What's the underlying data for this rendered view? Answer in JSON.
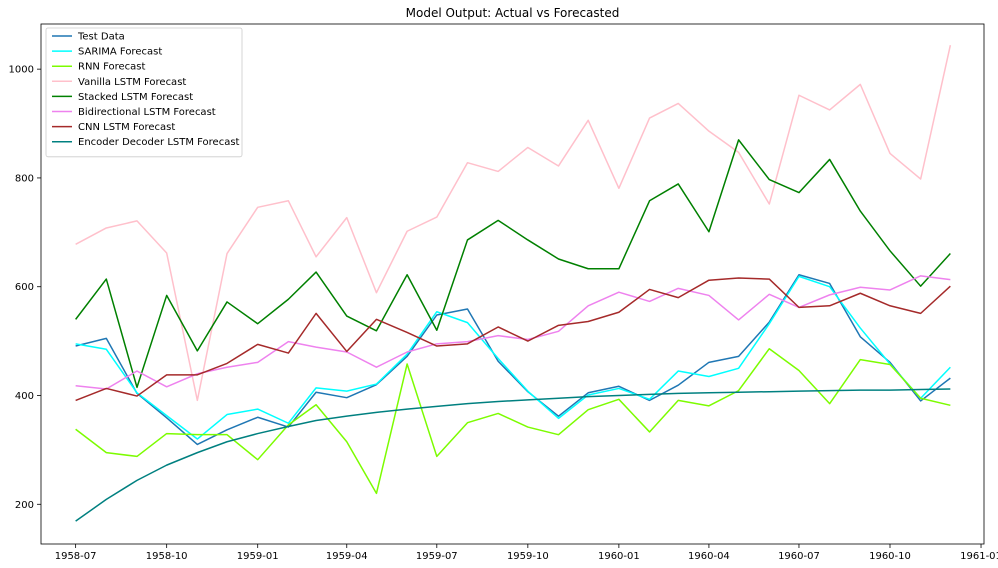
{
  "chart_data": {
    "type": "line",
    "title": "Model Output: Actual vs Forecasted",
    "xlabel": "",
    "ylabel": "",
    "x": [
      "1958-07",
      "1958-08",
      "1958-09",
      "1958-10",
      "1958-11",
      "1958-12",
      "1959-01",
      "1959-02",
      "1959-03",
      "1959-04",
      "1959-05",
      "1959-06",
      "1959-07",
      "1959-08",
      "1959-09",
      "1959-10",
      "1959-11",
      "1959-12",
      "1960-01",
      "1960-02",
      "1960-03",
      "1960-04",
      "1960-05",
      "1960-06",
      "1960-07",
      "1960-08",
      "1960-09",
      "1960-10",
      "1960-11",
      "1960-12"
    ],
    "x_ticks": [
      "1958-07",
      "1958-10",
      "1959-01",
      "1959-04",
      "1959-07",
      "1959-10",
      "1960-01",
      "1960-04",
      "1960-07",
      "1960-10",
      "1961-01"
    ],
    "y_ticks": [
      200,
      400,
      600,
      800,
      1000
    ],
    "xlim": [
      "1958-05-27",
      "1961-01-04"
    ],
    "ylim": [
      127,
      1083
    ],
    "grid": false,
    "legend_position": "upper left",
    "series": [
      {
        "name": "Test Data",
        "color": "#1f77b4",
        "values": [
          491,
          505,
          404,
          359,
          310,
          337,
          360,
          342,
          406,
          396,
          420,
          472,
          548,
          559,
          463,
          407,
          362,
          405,
          417,
          391,
          419,
          461,
          472,
          535,
          622,
          606,
          508,
          461,
          390,
          432
        ]
      },
      {
        "name": "SARIMA Forecast",
        "color": "#00ffff",
        "values": [
          495,
          485,
          405,
          363,
          320,
          365,
          375,
          349,
          414,
          408,
          421,
          476,
          554,
          534,
          468,
          408,
          358,
          401,
          413,
          393,
          445,
          435,
          450,
          532,
          619,
          600,
          524,
          458,
          395,
          452
        ]
      },
      {
        "name": "RNN Forecast",
        "color": "#7cfc00",
        "values": [
          338,
          295,
          288,
          330,
          328,
          328,
          282,
          346,
          383,
          315,
          220,
          458,
          288,
          350,
          367,
          342,
          328,
          374,
          393,
          333,
          391,
          381,
          409,
          486,
          446,
          385,
          466,
          457,
          395,
          382
        ]
      },
      {
        "name": "Vanilla LSTM Forecast",
        "color": "#ffc0cb",
        "values": [
          678,
          708,
          721,
          662,
          391,
          661,
          746,
          758,
          655,
          727,
          589,
          702,
          728,
          828,
          812,
          856,
          822,
          906,
          781,
          910,
          937,
          886,
          847,
          752,
          952,
          925,
          972,
          845,
          798,
          1044
        ]
      },
      {
        "name": "Stacked LSTM Forecast",
        "color": "#008000",
        "values": [
          540,
          614,
          415,
          584,
          482,
          572,
          532,
          577,
          627,
          546,
          519,
          622,
          520,
          686,
          722,
          686,
          651,
          633,
          633,
          758,
          789,
          701,
          870,
          797,
          773,
          834,
          739,
          666,
          601,
          661
        ]
      },
      {
        "name": "Bidirectional LSTM Forecast",
        "color": "#ee82ee",
        "values": [
          418,
          412,
          445,
          416,
          440,
          452,
          461,
          499,
          489,
          480,
          452,
          480,
          495,
          499,
          510,
          503,
          518,
          565,
          590,
          573,
          597,
          584,
          539,
          586,
          562,
          585,
          599,
          594,
          620,
          613
        ]
      },
      {
        "name": "CNN LSTM Forecast",
        "color": "#a52a2a",
        "values": [
          391,
          413,
          399,
          438,
          438,
          459,
          494,
          478,
          551,
          481,
          540,
          516,
          491,
          495,
          526,
          500,
          529,
          536,
          553,
          595,
          580,
          612,
          616,
          614,
          562,
          565,
          588,
          565,
          551,
          601
        ]
      },
      {
        "name": "Encoder Decoder LSTM Forecast",
        "color": "#008080",
        "values": [
          169,
          209,
          244,
          272,
          295,
          315,
          330,
          343,
          354,
          362,
          369,
          375,
          380,
          385,
          389,
          392,
          395,
          398,
          400,
          402,
          404,
          405,
          406,
          407,
          408,
          409,
          410,
          410,
          411,
          412
        ]
      }
    ]
  }
}
